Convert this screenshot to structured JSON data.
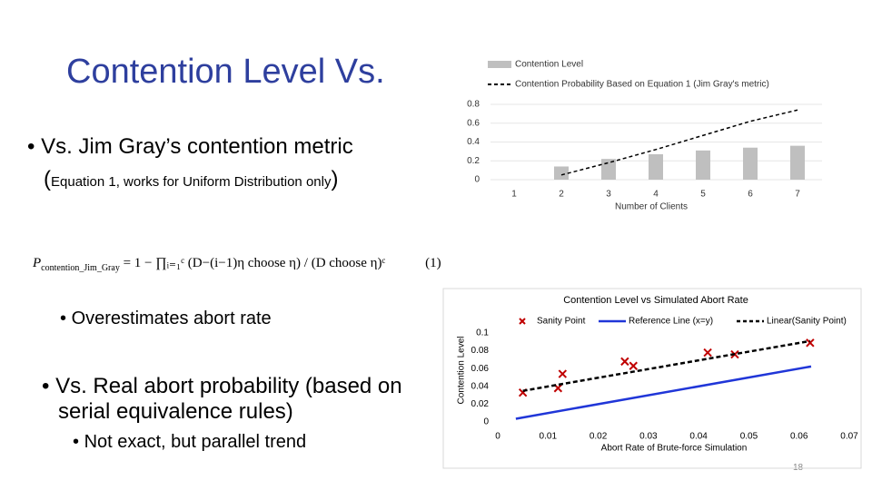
{
  "slide": {
    "title": "Contention Level Vs.",
    "bullets": [
      "Vs. Jim Gray’s contention metric",
      "Overestimates abort rate",
      "Vs. Real abort probability (based on serial equivalence rules)",
      "Not exact, but parallel trend"
    ],
    "note": "Equation 1, works for Uniform Distribution only",
    "equation": {
      "lhs": "P",
      "subscript": "contention_Jim_Gray",
      "rhs": "= 1 − ∏ᵢ₌₁ᶜ (D−(i−1)η choose η) / (D choose η)ᶜ",
      "number": "(1)"
    },
    "page_number": "18"
  },
  "chart_data": [
    {
      "type": "bar",
      "xlabel": "Number of Clients",
      "categories": [
        "1",
        "2",
        "3",
        "4",
        "5",
        "6",
        "7"
      ],
      "ylim": [
        0,
        0.8
      ],
      "yticks": [
        0,
        0.2,
        0.4,
        0.6,
        0.8
      ],
      "series": [
        {
          "name": "Contention Level",
          "type": "bar",
          "color": "#bfbfbf",
          "values": [
            0,
            0.14,
            0.22,
            0.27,
            0.31,
            0.34,
            0.36
          ]
        },
        {
          "name": "Contention Probability Based on Equation 1 (Jim Gray's metric)",
          "type": "line",
          "dash": true,
          "color": "#000000",
          "values": [
            null,
            0.05,
            0.18,
            0.32,
            0.47,
            0.62,
            0.74
          ]
        }
      ]
    },
    {
      "type": "scatter",
      "title": "Contention Level vs Simulated Abort Rate",
      "xlabel": "Abort Rate of Brute-force Simulation",
      "ylabel": "Contention Level",
      "xlim": [
        0,
        0.07
      ],
      "xticks": [
        0,
        0.01,
        0.02,
        0.03,
        0.04,
        0.05,
        0.06,
        0.07
      ],
      "ylim": [
        0,
        0.1
      ],
      "yticks": [
        0,
        0.02,
        0.04,
        0.06,
        0.08,
        0.1
      ],
      "series": [
        {
          "name": "Sanity Point",
          "type": "scatter",
          "color": "#c00000",
          "x": [
            0.005,
            0.012,
            0.0129,
            0.0253,
            0.027,
            0.0418,
            0.0472,
            0.0622
          ],
          "values": [
            0.033,
            0.038,
            0.054,
            0.068,
            0.063,
            0.078,
            0.076,
            0.089
          ]
        },
        {
          "name": "Reference Line (x=y)",
          "type": "line",
          "dash": false,
          "color": "#2036d8",
          "x": [
            0.0036,
            0.0624
          ],
          "values": [
            0.0036,
            0.0624
          ]
        },
        {
          "name": "Linear(Sanity Point)",
          "type": "line",
          "dash": true,
          "color": "#000000",
          "x": [
            0.005,
            0.0622
          ],
          "values": [
            0.035,
            0.091
          ]
        }
      ]
    }
  ]
}
